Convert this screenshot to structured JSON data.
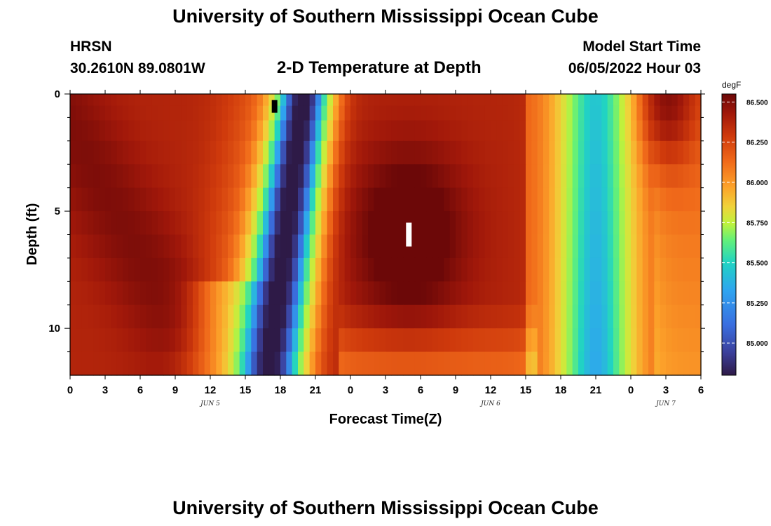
{
  "header": {
    "title_top": "University of Southern Mississippi Ocean Cube",
    "title_bottom": "University of Southern Mississippi Ocean Cube",
    "station": "HRSN",
    "coords": "30.2610N  89.0801W",
    "plot_title": "2-D Temperature at Depth",
    "model_label": "Model Start Time",
    "model_time": "06/05/2022 Hour 03"
  },
  "chart_data": {
    "type": "heatmap",
    "title": "2-D Temperature at Depth",
    "xlabel": "Forecast Time(Z)",
    "ylabel": "Depth (ft)",
    "x_hours": [
      0,
      54
    ],
    "x_ticks": [
      "0",
      "3",
      "6",
      "9",
      "12",
      "15",
      "18",
      "21",
      "0",
      "3",
      "6",
      "9",
      "12",
      "15",
      "18",
      "21",
      "0",
      "3",
      "6"
    ],
    "date_labels": [
      {
        "hour": 12,
        "text": "JUN 5"
      },
      {
        "hour": 36,
        "text": "JUN 6"
      },
      {
        "hour": 51,
        "text": "JUN 7"
      }
    ],
    "ylim": [
      0,
      12
    ],
    "y_ticks": [
      0,
      5,
      10
    ],
    "y_minor_ticks": [
      1,
      2,
      3,
      4,
      6,
      7,
      8,
      9,
      11
    ],
    "depth_levels": [
      0.25,
      0.75,
      1.5,
      2.5,
      3.5,
      4.5,
      5.5,
      6.5,
      7.5,
      8.5,
      9.5,
      10.5,
      11.5
    ],
    "colorbar": {
      "unit": "degF",
      "min": 84.8,
      "max": 86.55,
      "ticks": [
        "86.500",
        "86.250",
        "86.000",
        "85.750",
        "85.500",
        "85.250",
        "85.000"
      ],
      "colors": [
        "#2e1a47",
        "#3b3f9a",
        "#3a6fe0",
        "#2fa4f0",
        "#21d3c3",
        "#62f07a",
        "#bff23c",
        "#f0d23a",
        "#fca22a",
        "#f06a1a",
        "#cf3a0c",
        "#a1180a",
        "#6c0808"
      ]
    },
    "annotations": [
      {
        "hour": 17.5,
        "depth": 0.5,
        "color": "#000000"
      },
      {
        "hour": 29,
        "depth": 6,
        "color": "#ffffff"
      }
    ]
  }
}
